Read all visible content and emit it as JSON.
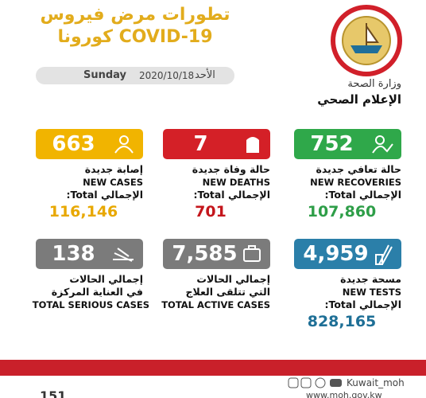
{
  "header": {
    "title_line1": "تطورات مرض فيروس",
    "title_line2": "كورونا COVID-19",
    "ministry": "وزارة الصحة",
    "department": "الإعلام الصحي"
  },
  "date": {
    "day_en": "Sunday",
    "date": "2020/10/18",
    "day_ar": "الأحد"
  },
  "cards": [
    {
      "value": "663",
      "lines": [
        "إصابة جديدة",
        "NEW CASES",
        "الإجمالي Total:"
      ],
      "total": "116,146"
    },
    {
      "value": "7",
      "lines": [
        "حالة وفاة جديدة",
        "NEW DEATHS",
        "الإجمالي Total:"
      ],
      "total": "701"
    },
    {
      "value": "752",
      "lines": [
        "حالة تعافي جديدة",
        "NEW RECOVERIES",
        "الإجمالي Total:"
      ],
      "total": "107,860"
    },
    {
      "value": "138",
      "lines": [
        "إجمالي الحالات",
        "في العناية المركزة",
        "TOTAL SERIOUS CASES"
      ]
    },
    {
      "value": "7,585",
      "lines": [
        "إجمالي الحالات",
        "التي تتلقى العلاج",
        "TOTAL ACTIVE CASES"
      ]
    },
    {
      "value": "4,959",
      "lines": [
        "مسحة جديدة",
        "NEW TESTS",
        "الإجمالي Total:"
      ],
      "total": "828,165"
    }
  ],
  "footer": {
    "handle": "Kuwait_moh",
    "website": "www.moh.gov.kw",
    "hotline": "151"
  }
}
